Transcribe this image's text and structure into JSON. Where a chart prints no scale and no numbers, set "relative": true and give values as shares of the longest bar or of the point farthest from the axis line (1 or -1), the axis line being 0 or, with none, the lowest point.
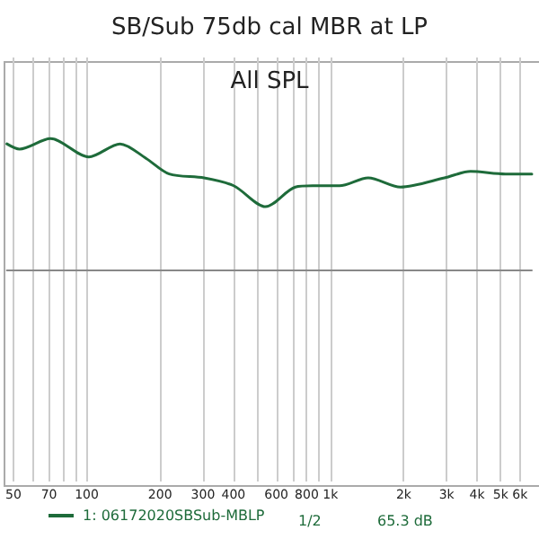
{
  "chart_data": {
    "type": "line",
    "title": "SB/Sub 75db cal MBR at LP",
    "subtitle": "All SPL",
    "relative": true,
    "log": "x",
    "grid": true,
    "legend": "bottom",
    "marker": "none",
    "line_style": "solid",
    "xlim": [
      47,
      6710
    ],
    "xticks": [
      50,
      {
        "value": 60,
        "label": null
      },
      70,
      {
        "value": 80,
        "label": null
      },
      {
        "value": 90,
        "label": null
      },
      100,
      200,
      300,
      400,
      {
        "value": 500,
        "label": null
      },
      600,
      {
        "value": 700,
        "label": null
      },
      800,
      {
        "value": 900,
        "label": null
      },
      {
        "value": 1000,
        "label": "1k"
      },
      {
        "value": 2000,
        "label": "2k"
      },
      {
        "value": 3000,
        "label": "3k"
      },
      {
        "value": 4000,
        "label": "4k"
      },
      {
        "value": 5000,
        "label": "5k"
      },
      {
        "value": 6000,
        "label": "6k"
      }
    ],
    "x": [
      47,
      53,
      71,
      102,
      137,
      175,
      218,
      303,
      401,
      542,
      718,
      846,
      1090,
      1430,
      1940,
      2940,
      3760,
      5230,
      6710
    ],
    "series": [
      {
        "name": "1: 06172020SBSub-MBLP",
        "color": "#1e6b3a",
        "values": [
          0.96,
          0.92,
          1,
          0.86,
          0.96,
          0.85,
          0.73,
          0.7,
          0.64,
          0.48,
          0.63,
          0.64,
          0.64,
          0.7,
          0.63,
          0.7,
          0.75,
          0.73,
          0.73
        ]
      }
    ],
    "annotations": [
      "1/2",
      "65.3 dB"
    ]
  }
}
